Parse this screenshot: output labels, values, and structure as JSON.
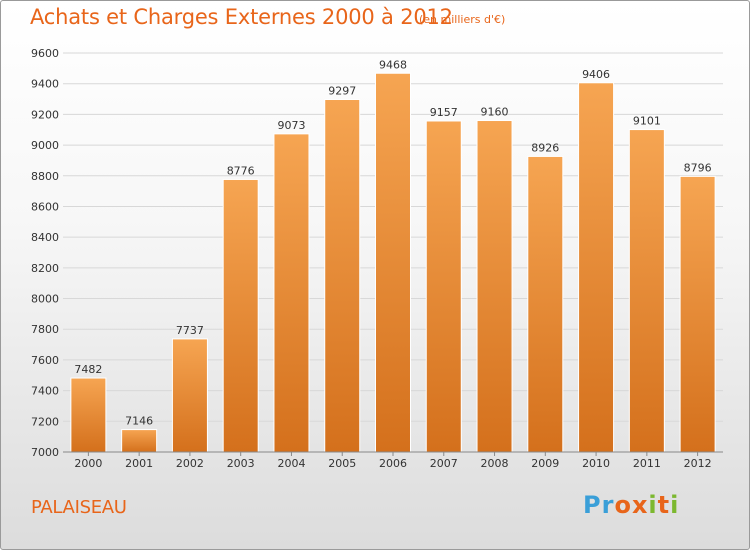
{
  "title": "Achats et Charges Externes 2000 à 2012",
  "unit": "(en milliers d'€)",
  "city": "PALAISEAU",
  "logo": {
    "letters": [
      "P",
      "r",
      "o",
      "x",
      "i",
      "t",
      "i"
    ],
    "colors": [
      "#3a9fd8",
      "#3a9fd8",
      "#e8651a",
      "#e8651a",
      "#7cb82f",
      "#e8651a",
      "#7cb82f"
    ]
  },
  "colors": {
    "accent": "#e8651a",
    "bar_top": "#f6a552",
    "bar_bottom": "#d4701c",
    "grid": "#d8d8d8"
  },
  "chart_data": {
    "type": "bar",
    "title": "Achats et Charges Externes 2000 à 2012",
    "subtitle": "(en milliers d'€)",
    "categories": [
      "2000",
      "2001",
      "2002",
      "2003",
      "2004",
      "2005",
      "2006",
      "2007",
      "2008",
      "2009",
      "2010",
      "2011",
      "2012"
    ],
    "values": [
      7482,
      7146,
      7737,
      8776,
      9073,
      9297,
      9468,
      9157,
      9160,
      8926,
      9406,
      9101,
      8796
    ],
    "ylim": [
      7000,
      9600
    ],
    "yticks": [
      7000,
      7200,
      7400,
      7600,
      7800,
      8000,
      8200,
      8400,
      8600,
      8800,
      9000,
      9200,
      9400,
      9600
    ],
    "grid": true,
    "xlabel": "",
    "ylabel": ""
  }
}
